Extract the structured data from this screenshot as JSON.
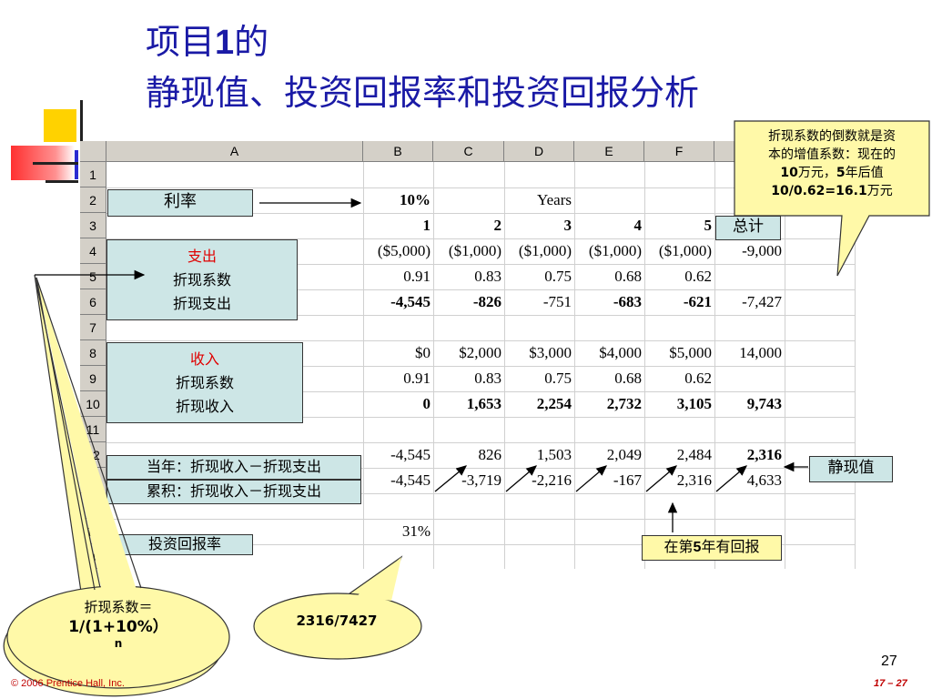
{
  "title": {
    "line1_pre": "项目",
    "line1_num": "1",
    "line1_post": "的",
    "line2": "静现值、投资回报率和投资回报分析"
  },
  "sheet": {
    "columns": [
      "A",
      "B",
      "C",
      "D",
      "E",
      "F",
      "G"
    ],
    "rows": [
      "1",
      "2",
      "3",
      "4",
      "5",
      "6",
      "7",
      "8",
      "9",
      "10",
      "11",
      "12",
      "13",
      "14",
      "15",
      "16"
    ],
    "rate_value": "10%",
    "years_label": "Years",
    "year_nums": [
      "1",
      "2",
      "3",
      "4",
      "5"
    ],
    "r4": [
      "($5,000)",
      "($1,000)",
      "($1,000)",
      "($1,000)",
      "($1,000)",
      "-9,000"
    ],
    "r5": [
      "0.91",
      "0.83",
      "0.75",
      "0.68",
      "0.62"
    ],
    "r6": [
      "-4,545",
      "-826",
      "-751",
      "-683",
      "-621",
      "-7,427"
    ],
    "r8": [
      "$0",
      "$2,000",
      "$3,000",
      "$4,000",
      "$5,000",
      "14,000"
    ],
    "r9": [
      "0.91",
      "0.83",
      "0.75",
      "0.68",
      "0.62"
    ],
    "r10": [
      "0",
      "1,653",
      "2,254",
      "2,732",
      "3,105",
      "9,743"
    ],
    "r12": [
      "-4,545",
      "826",
      "1,503",
      "2,049",
      "2,484",
      "2,316"
    ],
    "r13": [
      "-4,545",
      "-3,719",
      "-2,216",
      "-167",
      "2,316",
      "4,633"
    ],
    "roi_value": "31%"
  },
  "labels": {
    "rate": "利率",
    "total": "总计",
    "expense_title": "支出",
    "expense_l1": "折现系数",
    "expense_l2": "折现支出",
    "income_title": "收入",
    "income_l1": "折现系数",
    "income_l2": "折现收入",
    "current_year": "当年：折现收入－折现支出",
    "cumulative": "累积：折现收入－折现支出",
    "roi": "投资回报率",
    "npv": "静现值",
    "payback_pre": "在第",
    "payback_num": "5",
    "payback_post": "年有回报"
  },
  "callouts": {
    "top_right_l1": "折现系数的倒数就是资",
    "top_right_l2": "本的增值系数：现在的",
    "top_right_l3a": "10",
    "top_right_l3b": "万元，",
    "top_right_l3c": "5",
    "top_right_l3d": "年后值",
    "top_right_l4a": "10/0.62=16.1",
    "top_right_l4b": "万元",
    "left_l1": "折现系数＝",
    "left_l2": "1/(1+10%）",
    "left_l3": "n",
    "oval": "2316/7427"
  },
  "footer": {
    "copyright": "© 2006 Prentice Hall, Inc.",
    "page_number": "27",
    "slide_ref": "17 – 27"
  },
  "colors": {
    "title": "#1a1aa6",
    "box_fill": "#cde6e6",
    "callout_fill": "#fff9a8",
    "accent_red": "#e00000"
  }
}
